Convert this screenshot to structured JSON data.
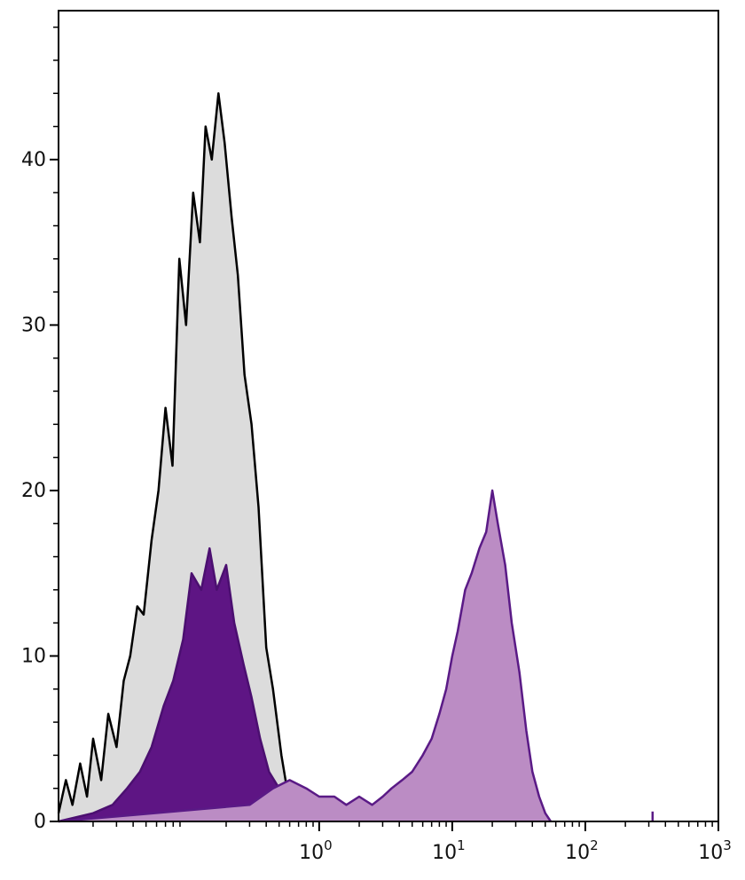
{
  "chart_data": {
    "type": "area",
    "title": "",
    "xlabel": "",
    "ylabel": "",
    "x_scale": "log",
    "xlim": [
      0.011,
      1000
    ],
    "ylim": [
      0,
      49
    ],
    "y_ticks": [
      {
        "value": 0,
        "label": "0"
      },
      {
        "value": 10,
        "label": "10"
      },
      {
        "value": 20,
        "label": "20"
      },
      {
        "value": 30,
        "label": "30"
      },
      {
        "value": 40,
        "label": "40"
      }
    ],
    "x_ticks": [
      {
        "value": 1,
        "base": "10",
        "exp": "0"
      },
      {
        "value": 10,
        "base": "10",
        "exp": "1"
      },
      {
        "value": 100,
        "base": "10",
        "exp": "2"
      },
      {
        "value": 1000,
        "base": "10",
        "exp": "3"
      }
    ],
    "grid": false,
    "legend": "none",
    "series": [
      {
        "fill": "#dcdcdc",
        "stroke": "#000000",
        "x": [
          0.011,
          0.0125,
          0.014,
          0.016,
          0.018,
          0.02,
          0.023,
          0.026,
          0.03,
          0.034,
          0.038,
          0.043,
          0.048,
          0.055,
          0.062,
          0.07,
          0.079,
          0.089,
          0.1,
          0.113,
          0.127,
          0.14,
          0.156,
          0.175,
          0.195,
          0.22,
          0.245,
          0.275,
          0.31,
          0.35,
          0.4,
          0.45,
          0.52,
          0.6,
          0.68
        ],
        "y": [
          0.5,
          2.5,
          1,
          3.5,
          1.5,
          5,
          2.5,
          6.5,
          4.5,
          8.5,
          10,
          13,
          12.5,
          17,
          20,
          25,
          21.5,
          34,
          30,
          38,
          35,
          42,
          40,
          44,
          41,
          36.5,
          33,
          27,
          24,
          19,
          10.5,
          8,
          4,
          1,
          0
        ]
      },
      {
        "fill": "#5e1584",
        "stroke": "#4b0f70",
        "x": [
          0.011,
          0.02,
          0.028,
          0.036,
          0.045,
          0.055,
          0.068,
          0.08,
          0.095,
          0.11,
          0.13,
          0.15,
          0.17,
          0.2,
          0.23,
          0.27,
          0.31,
          0.36,
          0.42,
          0.5,
          0.58,
          0.68,
          0.8
        ],
        "y": [
          0,
          0.5,
          1,
          2,
          3,
          4.5,
          7,
          8.5,
          11,
          15,
          14,
          16.5,
          14,
          15.5,
          12,
          9.5,
          7.5,
          5,
          3,
          2,
          1,
          0.5,
          0
        ]
      },
      {
        "fill": "#bb8cc4",
        "stroke": "#5a1a86",
        "x": [
          0.011,
          0.3,
          0.45,
          0.6,
          0.8,
          1.0,
          1.3,
          1.6,
          2.0,
          2.5,
          3.0,
          3.5,
          4.2,
          5.0,
          6.0,
          7.0,
          8.0,
          9.0,
          10.0,
          11.0,
          12.5,
          14.0,
          16.0,
          18.0,
          20.0,
          22.0,
          25.0,
          28.0,
          32.0,
          36.0,
          40.0,
          45.0,
          50.0,
          55.0
        ],
        "y": [
          0,
          1,
          2,
          2.5,
          2,
          1.5,
          1.5,
          1,
          1.5,
          1,
          1.5,
          2,
          2.5,
          3,
          4,
          5,
          6.5,
          8,
          10,
          11.5,
          14,
          15,
          16.5,
          17.5,
          20,
          18,
          15.5,
          12,
          9,
          5.5,
          3,
          1.5,
          0.5,
          0
        ]
      },
      {
        "fill": "none",
        "stroke": "#5a1a86",
        "x": [
          320,
          320
        ],
        "y": [
          0,
          0.6
        ]
      }
    ]
  }
}
